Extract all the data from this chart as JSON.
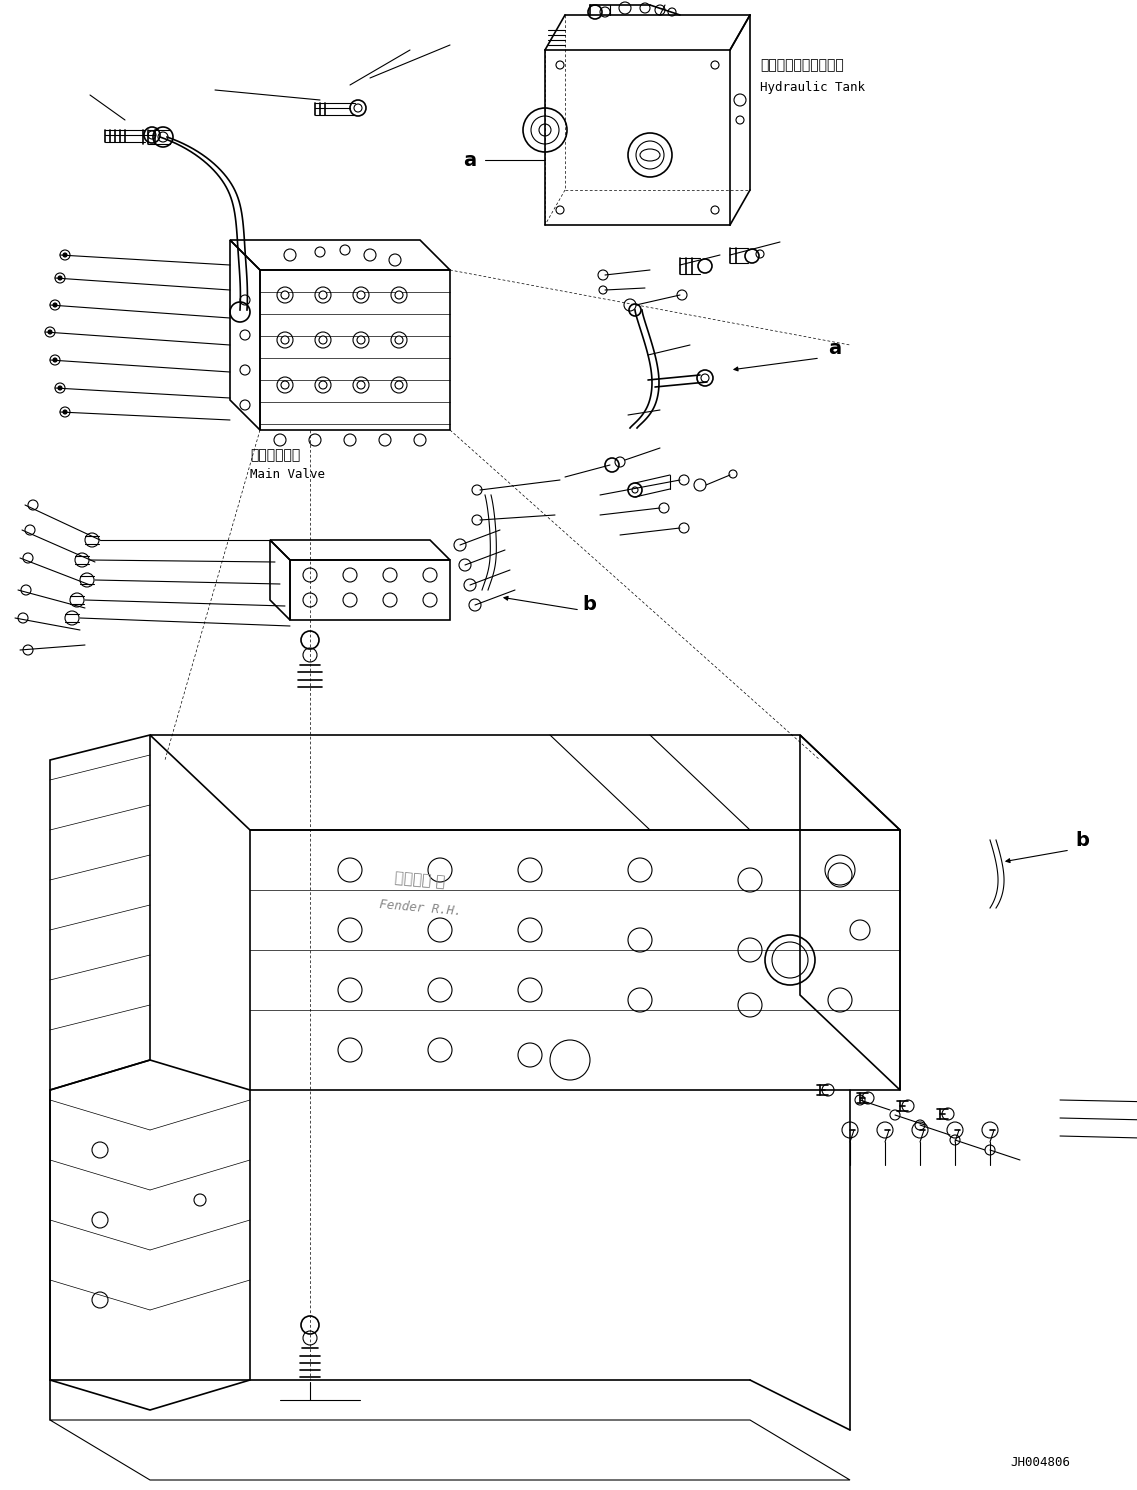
{
  "bg_color": "#ffffff",
  "line_color": "#000000",
  "fig_width": 11.37,
  "fig_height": 14.9,
  "dpi": 100,
  "labels": {
    "hydraulic_tank_jp": "ハイドロリックタンク",
    "hydraulic_tank_en": "Hydraulic Tank",
    "main_valve_jp": "メインバルブ",
    "main_valve_en": "Main Valve",
    "fender_jp": "フェンダ 右",
    "fender_en": "Fender R.H.",
    "label_a1": "a",
    "label_a2": "a",
    "label_b1": "b",
    "label_b2": "b",
    "part_number": "JH004806"
  },
  "font_sizes": {
    "jp": 10,
    "en": 9,
    "callout": 12,
    "part_number": 9
  }
}
